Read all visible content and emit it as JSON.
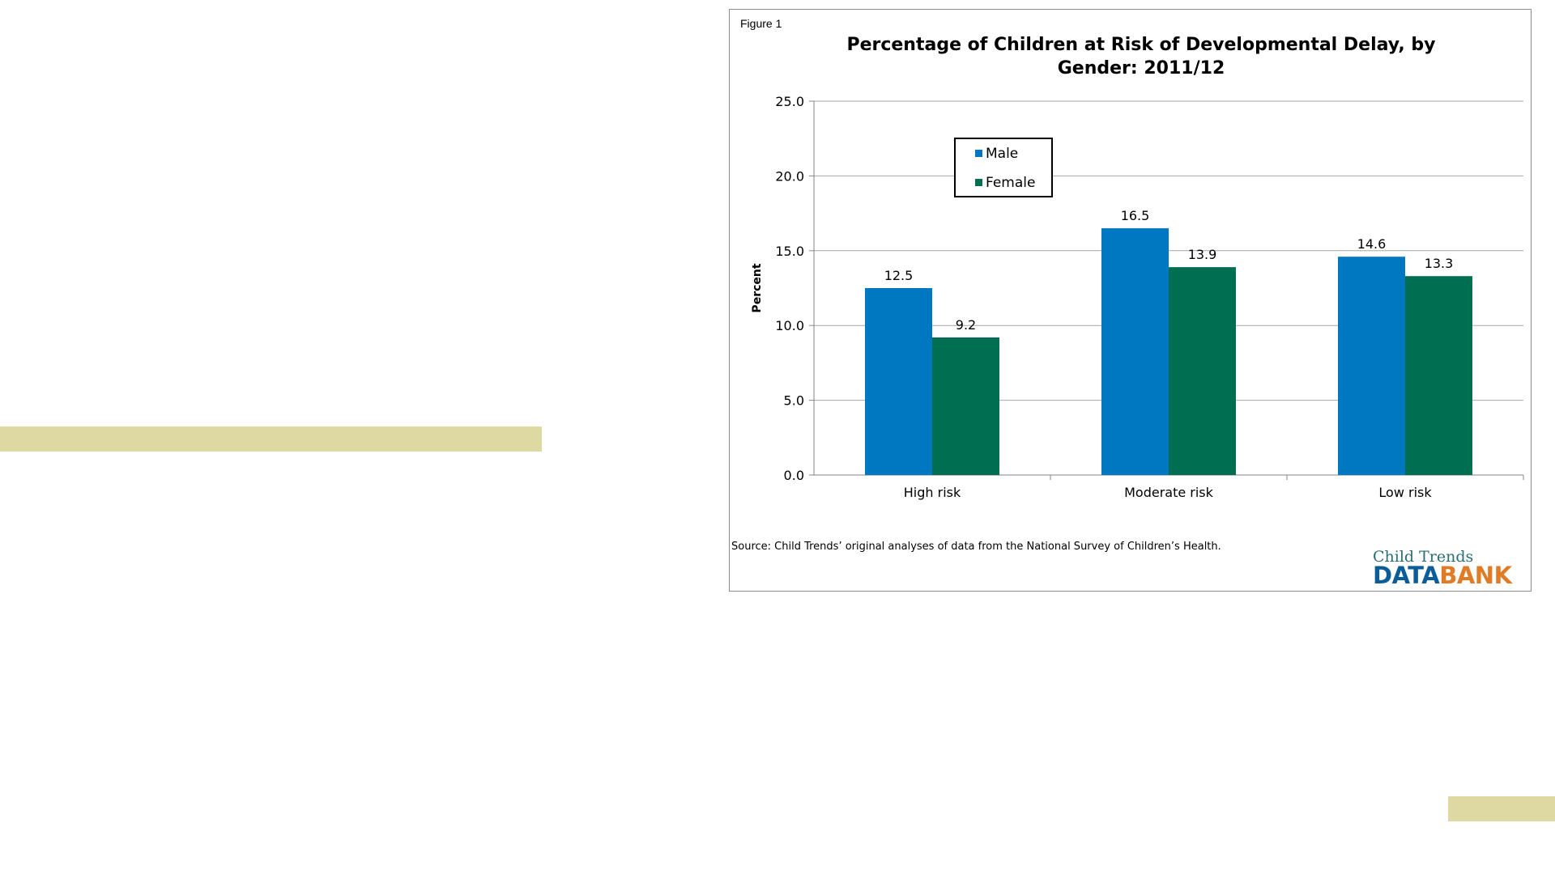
{
  "colors": {
    "accent_bar": "#ded9a3",
    "male": "#0078c1",
    "female": "#006f51",
    "grid": "#a6a6a6",
    "logo_data": "#0b5d99",
    "logo_bank": "#e07b26"
  },
  "figure_label": "Figure 1",
  "source": "Source: Child Trends’ original analyses of data from the National Survey of Children’s Health.",
  "logo": {
    "top": "Child Trends",
    "data": "DATA",
    "bank": "BANK"
  },
  "chart_data": {
    "type": "bar",
    "title": [
      "Percentage of Children at Risk of Developmental Delay, by",
      "Gender: 2011/12"
    ],
    "ylabel": "Percent",
    "xlabel": "",
    "categories": [
      "High risk",
      "Moderate risk",
      "Low risk"
    ],
    "series": [
      {
        "name": "Male",
        "values": [
          12.5,
          16.5,
          14.6
        ]
      },
      {
        "name": "Female",
        "values": [
          9.2,
          13.9,
          13.3
        ]
      }
    ],
    "ylim": [
      0,
      25
    ],
    "yticks": [
      "0.0",
      "5.0",
      "10.0",
      "15.0",
      "20.0",
      "25.0"
    ],
    "grid": true,
    "legend": "upper-left"
  }
}
